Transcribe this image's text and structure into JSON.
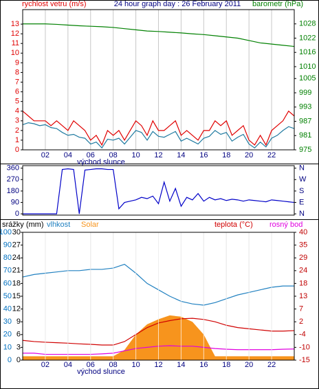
{
  "chart_data": [
    {
      "type": "line",
      "title": "24 hour graph day : 26 February 2011",
      "ylabel": "rychlost vetru (m/s)",
      "y2label": "barometr (hPa)",
      "annotation": "východ slunce",
      "x": [
        0,
        0.5,
        1,
        1.5,
        2,
        2.5,
        3,
        3.5,
        4,
        4.5,
        5,
        5.5,
        6,
        6.5,
        7,
        7.5,
        8,
        8.5,
        9,
        9.5,
        10,
        10.5,
        11,
        11.5,
        12,
        12.5,
        13,
        13.5,
        14,
        14.5,
        15,
        15.5,
        16,
        16.5,
        17,
        17.5,
        18,
        18.5,
        19,
        19.5,
        20,
        20.5,
        21,
        21.5,
        22,
        22.5,
        23,
        23.5,
        24
      ],
      "xlim": [
        0,
        24
      ],
      "xticks": [
        {
          "value": 2,
          "label": "02"
        },
        {
          "value": 4,
          "label": "04"
        },
        {
          "value": 6,
          "label": "06"
        },
        {
          "value": 8,
          "label": "08"
        },
        10,
        12,
        14,
        16,
        18,
        20,
        22
      ],
      "ylim": [
        0,
        14.5
      ],
      "yticks": [
        0,
        1,
        2,
        3,
        4,
        5,
        6,
        7,
        8,
        9,
        10,
        11,
        12,
        13
      ],
      "y2lim": [
        975,
        1034
      ],
      "y2ticks": [
        975,
        981,
        987,
        993,
        999,
        1005,
        1010,
        1016,
        1022,
        1028
      ],
      "grid": "x",
      "ycolor": "#e00000",
      "y2color": "#008000",
      "series": [
        {
          "color": "#e00000",
          "values": [
            4,
            3.5,
            3,
            3,
            3,
            2.5,
            3,
            2.5,
            2,
            3,
            2.5,
            2,
            1,
            1.5,
            0.5,
            2,
            1.5,
            2,
            1,
            2,
            3,
            2.5,
            1.5,
            3,
            2,
            2,
            2.5,
            3,
            1.5,
            2,
            1.5,
            1,
            2,
            2,
            3,
            2.5,
            3,
            1.5,
            2,
            2.5,
            1,
            0.5,
            1.5,
            0.5,
            2,
            2.5,
            3,
            4,
            3.5
          ]
        },
        {
          "color": "#1f7aa0",
          "values": [
            2.6,
            2.8,
            2.7,
            2.5,
            2.6,
            2.3,
            2.2,
            1.8,
            1.5,
            1.6,
            1.3,
            1.2,
            0.6,
            0.8,
            0.2,
            1.1,
            1.0,
            1.2,
            0.6,
            1.3,
            2.0,
            1.8,
            1.0,
            1.9,
            1.4,
            1.3,
            1.6,
            1.9,
            0.9,
            1.2,
            0.9,
            0.6,
            1.2,
            1.4,
            2.0,
            1.6,
            1.8,
            0.9,
            1.3,
            1.6,
            0.6,
            0.2,
            0.8,
            0.3,
            1.2,
            1.5,
            2.0,
            2.4,
            2.2
          ]
        },
        {
          "color": "#008000",
          "axis": "y2",
          "x": [
            0,
            1,
            2,
            3,
            4,
            5,
            6,
            7,
            8,
            9,
            10,
            11,
            12,
            13,
            14,
            15,
            16,
            17,
            18,
            19,
            20,
            21,
            22,
            23,
            24
          ],
          "values": [
            1028,
            1028,
            1028,
            1027.8,
            1027.5,
            1027.2,
            1027,
            1026.8,
            1026.5,
            1026,
            1025.5,
            1025,
            1024.8,
            1024.5,
            1024.2,
            1023.8,
            1023.5,
            1023,
            1022.5,
            1022,
            1021,
            1020,
            1019.5,
            1019,
            1018.5
          ]
        }
      ]
    },
    {
      "type": "line",
      "x": [
        0,
        0.5,
        1,
        1.5,
        2,
        2.5,
        3,
        3.5,
        4,
        4.5,
        5,
        5.5,
        6,
        6.5,
        7,
        7.5,
        8,
        8.5,
        9,
        9.5,
        10,
        10.5,
        11,
        11.5,
        12,
        12.5,
        13,
        13.5,
        14,
        14.5,
        15,
        15.5,
        16,
        16.5,
        17,
        17.5,
        18,
        18.5,
        19,
        19.5,
        20,
        20.5,
        21,
        21.5,
        22,
        22.5,
        23,
        23.5,
        24
      ],
      "xlim": [
        0,
        24
      ],
      "ylim": [
        -10,
        380
      ],
      "yticks": [
        0,
        90,
        180,
        270,
        360
      ],
      "y2lim": [
        -10,
        380
      ],
      "y2ticks": [
        {
          "value": 0,
          "label": "N"
        },
        {
          "value": 90,
          "label": "E"
        },
        {
          "value": 180,
          "label": "S"
        },
        {
          "value": 270,
          "label": "W"
        },
        {
          "value": 360,
          "label": "N"
        }
      ],
      "grid": "none",
      "ycolor": "#000080",
      "y2color": "#000080",
      "series": [
        {
          "color": "#0000c8",
          "values": [
            0,
            0,
            0,
            0,
            0,
            0,
            0,
            350,
            355,
            350,
            0,
            345,
            350,
            355,
            355,
            350,
            350,
            40,
            90,
            100,
            110,
            130,
            120,
            140,
            80,
            250,
            100,
            200,
            60,
            130,
            110,
            160,
            100,
            130,
            110,
            120,
            105,
            115,
            110,
            100,
            110,
            105,
            100,
            95,
            110,
            105,
            100,
            95,
            90
          ]
        }
      ]
    },
    {
      "type": "line",
      "y3label": "srážky (mm)",
      "annotation": "východ slunce",
      "x": [
        0,
        1,
        2,
        3,
        4,
        5,
        6,
        7,
        8,
        9,
        10,
        11,
        12,
        13,
        14,
        15,
        16,
        17,
        18,
        19,
        20,
        21,
        22,
        23,
        24
      ],
      "xlim": [
        0,
        24
      ],
      "xticks": [
        {
          "value": 2,
          "label": "02"
        },
        {
          "value": 4,
          "label": "04"
        },
        {
          "value": 6,
          "label": "06"
        },
        {
          "value": 8,
          "label": "08"
        },
        10,
        12,
        14,
        16,
        18,
        20,
        22
      ],
      "ylim": [
        0,
        100
      ],
      "yticks": [
        0,
        10,
        20,
        30,
        40,
        50,
        60,
        70,
        80,
        90,
        100
      ],
      "y2lim": [
        -15,
        40
      ],
      "y2ticks": [
        -15,
        {
          "value": -9.5,
          "label": "-10"
        },
        -4,
        {
          "value": 1.5,
          "label": "2"
        },
        7,
        {
          "value": 12.5,
          "label": "13"
        },
        18,
        {
          "value": 23.5,
          "label": "24"
        },
        29,
        {
          "value": 34.5,
          "label": "35"
        },
        40
      ],
      "y3lim": [
        0,
        30
      ],
      "y3ticks": [
        0,
        3,
        6,
        9,
        12,
        15,
        18,
        21,
        24,
        27,
        30
      ],
      "grid": "x",
      "ycolor": "#0070c0",
      "y2color": "#c00000",
      "y3color": "#000000",
      "series": [
        {
          "name": "Solar",
          "color": "#f7941d",
          "area": true,
          "values": [
            3,
            3,
            3,
            3,
            3,
            3,
            3,
            3,
            3,
            8,
            20,
            28,
            32,
            35,
            34,
            30,
            20,
            3,
            3,
            3,
            3,
            3,
            3,
            3,
            3
          ]
        },
        {
          "name": "vlhkost",
          "color": "#2080c0",
          "values": [
            65,
            67,
            68,
            69,
            70,
            70,
            71,
            71,
            72,
            75,
            68,
            60,
            55,
            50,
            46,
            44,
            43,
            45,
            48,
            51,
            53,
            55,
            57,
            58,
            58
          ]
        },
        {
          "name": "teplota (°C)",
          "color": "#d00000",
          "axis": "y2",
          "values": [
            -6.5,
            -7,
            -7.3,
            -7.5,
            -7.7,
            -8,
            -8.2,
            -8.5,
            -8.5,
            -7,
            -4,
            -1,
            1,
            2,
            2.8,
            3,
            2.5,
            1.5,
            0,
            -1,
            -1.5,
            -2,
            -2.5,
            -2.5,
            -2.3
          ]
        },
        {
          "name": "rosný bod",
          "color": "#e000e0",
          "axis": "y2",
          "values": [
            -12,
            -12,
            -12.5,
            -12.5,
            -12.5,
            -12.5,
            -12.5,
            -12.3,
            -12,
            -11,
            -10,
            -9.5,
            -9,
            -8.8,
            -9,
            -9,
            -9.5,
            -10,
            -10.3,
            -10.5,
            -10.5,
            -10.5,
            -10.5,
            -10.3,
            -10.2
          ]
        }
      ]
    }
  ]
}
